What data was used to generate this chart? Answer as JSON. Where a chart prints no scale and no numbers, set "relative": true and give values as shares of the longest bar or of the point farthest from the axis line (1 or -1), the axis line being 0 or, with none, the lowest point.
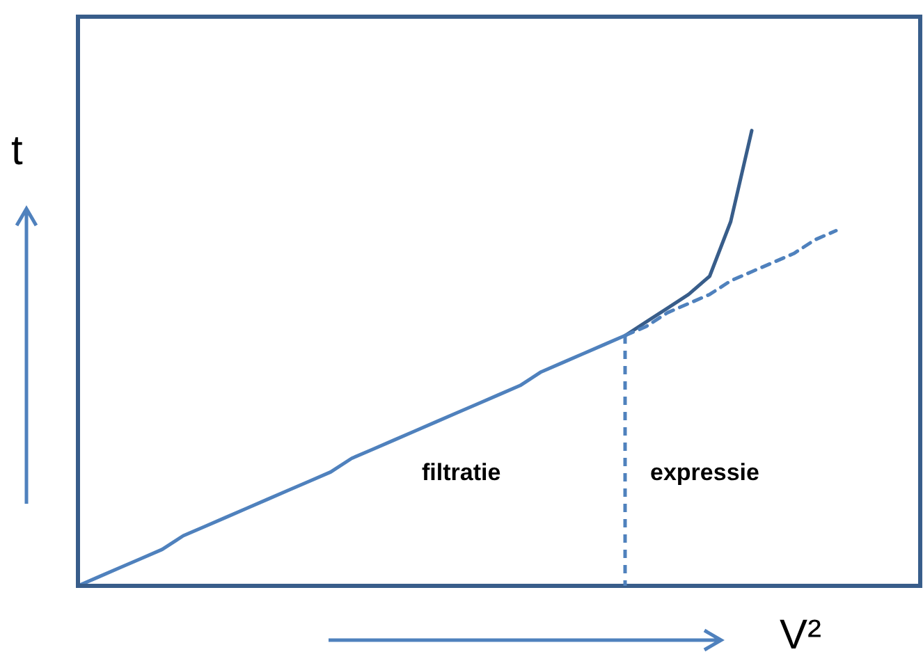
{
  "chart_data": {
    "type": "line",
    "relative": true,
    "xlabel": "V²",
    "ylabel": "t",
    "legend": false,
    "grid": false,
    "tick_labels": false,
    "marker": "none",
    "annotations": [
      "filtratie",
      "expressie"
    ],
    "categories": [
      null,
      null,
      null,
      null,
      null,
      null,
      null,
      null,
      null,
      null,
      null,
      null,
      null,
      null,
      null,
      null,
      null,
      null,
      null,
      null,
      null,
      null,
      null,
      null,
      null,
      null,
      null,
      null,
      null,
      null,
      null,
      null,
      null,
      null,
      null,
      null,
      null,
      null,
      null,
      null,
      null
    ],
    "series": [
      {
        "color": "#4f81bd",
        "line_style": "solid",
        "values": [
          0,
          0.02,
          0.04,
          0.06,
          0.08,
          0.11,
          0.13,
          0.15,
          0.17,
          0.19,
          0.21,
          0.23,
          0.25,
          0.28,
          0.3,
          0.32,
          0.34,
          0.36,
          0.38,
          0.4,
          0.42,
          0.44,
          0.47,
          0.49,
          0.51,
          0.53,
          0.55,
          null,
          null,
          null,
          null,
          null,
          null,
          null,
          null,
          null,
          null,
          null,
          null,
          null,
          null
        ]
      },
      {
        "color": "#4f81bd",
        "line_style": "dashed",
        "values": [
          null,
          null,
          null,
          null,
          null,
          null,
          null,
          null,
          null,
          null,
          null,
          null,
          null,
          null,
          null,
          null,
          null,
          null,
          null,
          null,
          null,
          null,
          null,
          null,
          null,
          null,
          0.55,
          0.57,
          0.6,
          0.62,
          0.64,
          0.67,
          0.69,
          0.71,
          0.73,
          0.76,
          0.78,
          null,
          null,
          null,
          null
        ]
      },
      {
        "color": "#385d8a",
        "line_style": "solid",
        "values": [
          null,
          null,
          null,
          null,
          null,
          null,
          null,
          null,
          null,
          null,
          null,
          null,
          null,
          null,
          null,
          null,
          null,
          null,
          null,
          null,
          null,
          null,
          null,
          null,
          null,
          null,
          0.55,
          0.58,
          0.61,
          0.64,
          0.68,
          0.8,
          1.0,
          null,
          null,
          null,
          null,
          null,
          null,
          null,
          null
        ]
      }
    ]
  }
}
